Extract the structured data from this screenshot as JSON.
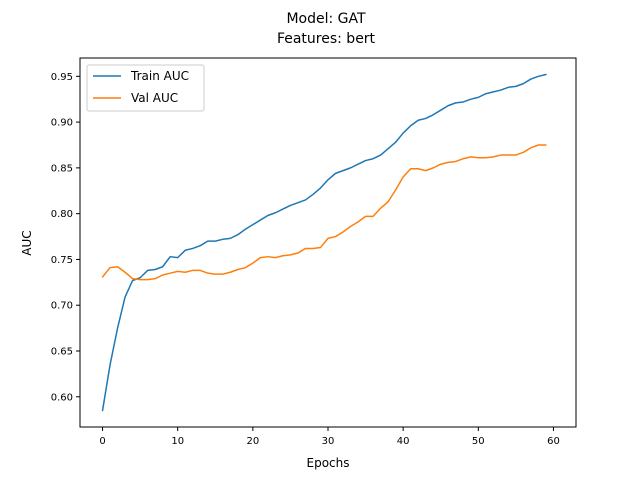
{
  "chart_data": {
    "type": "line",
    "title": "Model: GAT",
    "subtitle": "Features: bert",
    "xlabel": "Epochs",
    "ylabel": "AUC",
    "xlim": [
      -3,
      63
    ],
    "ylim": [
      0.567,
      0.97
    ],
    "xticks": [
      0,
      10,
      20,
      30,
      40,
      50,
      60
    ],
    "yticks": [
      0.6,
      0.65,
      0.7,
      0.75,
      0.8,
      0.85,
      0.9,
      0.95
    ],
    "grid": false,
    "legend_position": "upper left",
    "x": [
      0,
      1,
      2,
      3,
      4,
      5,
      6,
      7,
      8,
      9,
      10,
      11,
      12,
      13,
      14,
      15,
      16,
      17,
      18,
      19,
      20,
      21,
      22,
      23,
      24,
      25,
      26,
      27,
      28,
      29,
      30,
      31,
      32,
      33,
      34,
      35,
      36,
      37,
      38,
      39,
      40,
      41,
      42,
      43,
      44,
      45,
      46,
      47,
      48,
      49,
      50,
      51,
      52,
      53,
      54,
      55,
      56,
      57,
      58,
      59
    ],
    "series": [
      {
        "name": "Train AUC",
        "color": "#1f77b4",
        "values": [
          0.585,
          0.635,
          0.675,
          0.709,
          0.727,
          0.73,
          0.738,
          0.739,
          0.742,
          0.753,
          0.752,
          0.76,
          0.762,
          0.765,
          0.77,
          0.77,
          0.772,
          0.773,
          0.777,
          0.783,
          0.788,
          0.793,
          0.798,
          0.801,
          0.805,
          0.809,
          0.812,
          0.815,
          0.821,
          0.828,
          0.837,
          0.844,
          0.847,
          0.85,
          0.854,
          0.858,
          0.86,
          0.864,
          0.871,
          0.878,
          0.888,
          0.896,
          0.902,
          0.904,
          0.908,
          0.913,
          0.918,
          0.921,
          0.922,
          0.925,
          0.927,
          0.931,
          0.933,
          0.935,
          0.938,
          0.939,
          0.942,
          0.947,
          0.95,
          0.952
        ]
      },
      {
        "name": "Val AUC",
        "color": "#ff7f0e",
        "values": [
          0.731,
          0.741,
          0.742,
          0.736,
          0.729,
          0.728,
          0.728,
          0.729,
          0.733,
          0.735,
          0.737,
          0.736,
          0.738,
          0.738,
          0.735,
          0.734,
          0.734,
          0.736,
          0.739,
          0.741,
          0.746,
          0.752,
          0.753,
          0.752,
          0.754,
          0.755,
          0.757,
          0.762,
          0.762,
          0.763,
          0.773,
          0.775,
          0.78,
          0.786,
          0.791,
          0.797,
          0.797,
          0.806,
          0.813,
          0.826,
          0.84,
          0.849,
          0.849,
          0.847,
          0.85,
          0.854,
          0.856,
          0.857,
          0.86,
          0.862,
          0.861,
          0.861,
          0.862,
          0.864,
          0.864,
          0.864,
          0.867,
          0.872,
          0.875,
          0.875
        ]
      }
    ]
  }
}
